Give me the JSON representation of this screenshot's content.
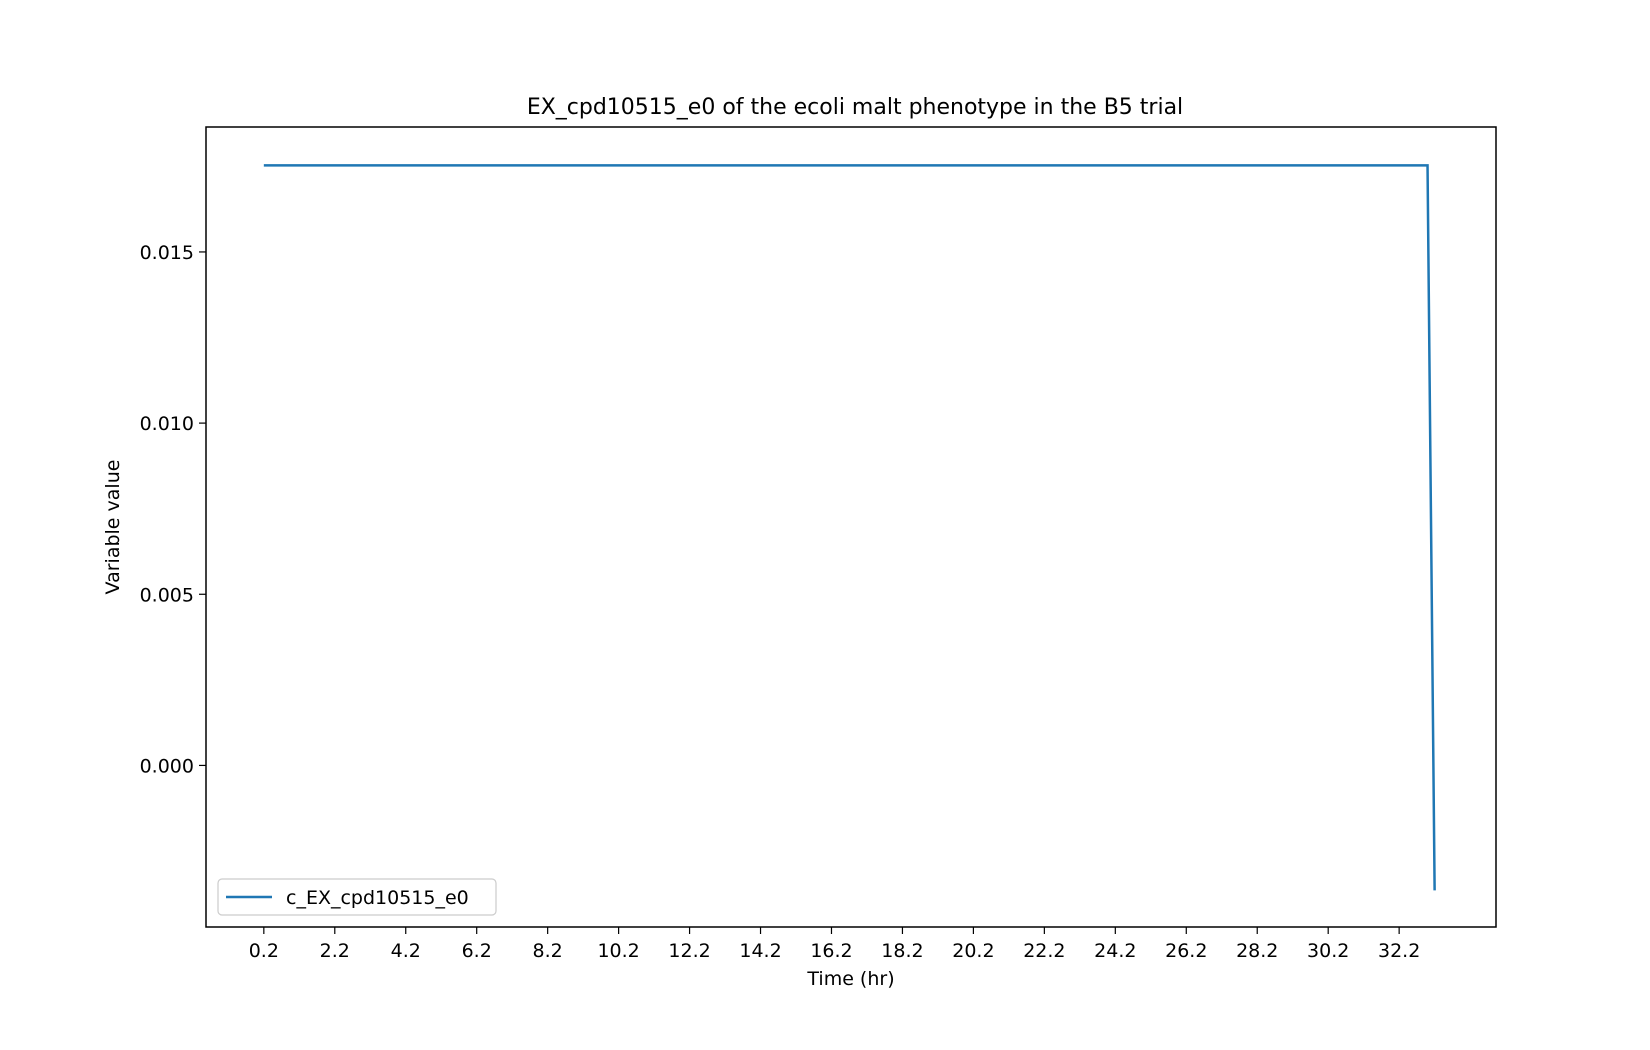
{
  "chart_data": {
    "type": "line",
    "title": "EX_cpd10515_e0 of the ecoli malt phenotype in the B5 trial",
    "xlabel": "Time (hr)",
    "ylabel": "Variable value",
    "xlim": [
      -1.43,
      34.93
    ],
    "ylim": [
      -0.00472,
      0.01865
    ],
    "x_ticks": [
      0.2,
      2.2,
      4.2,
      6.2,
      8.2,
      10.2,
      12.2,
      14.2,
      16.2,
      18.2,
      20.2,
      22.2,
      24.2,
      26.2,
      28.2,
      30.2,
      32.2
    ],
    "x_tick_labels": [
      "0.2",
      "2.2",
      "4.2",
      "6.2",
      "8.2",
      "10.2",
      "12.2",
      "14.2",
      "16.2",
      "18.2",
      "20.2",
      "22.2",
      "24.2",
      "26.2",
      "28.2",
      "30.2",
      "32.2"
    ],
    "y_ticks": [
      0.0,
      0.005,
      0.01,
      0.015
    ],
    "y_tick_labels": [
      "0.000",
      "0.005",
      "0.010",
      "0.015"
    ],
    "grid": false,
    "legend_position": "lower-left",
    "series": [
      {
        "name": "c_EX_cpd10515_e0",
        "color": "#1f77b4",
        "x": [
          0.2,
          33.0,
          33.2
        ],
        "y": [
          0.01753,
          0.01753,
          -0.00365
        ]
      }
    ]
  }
}
